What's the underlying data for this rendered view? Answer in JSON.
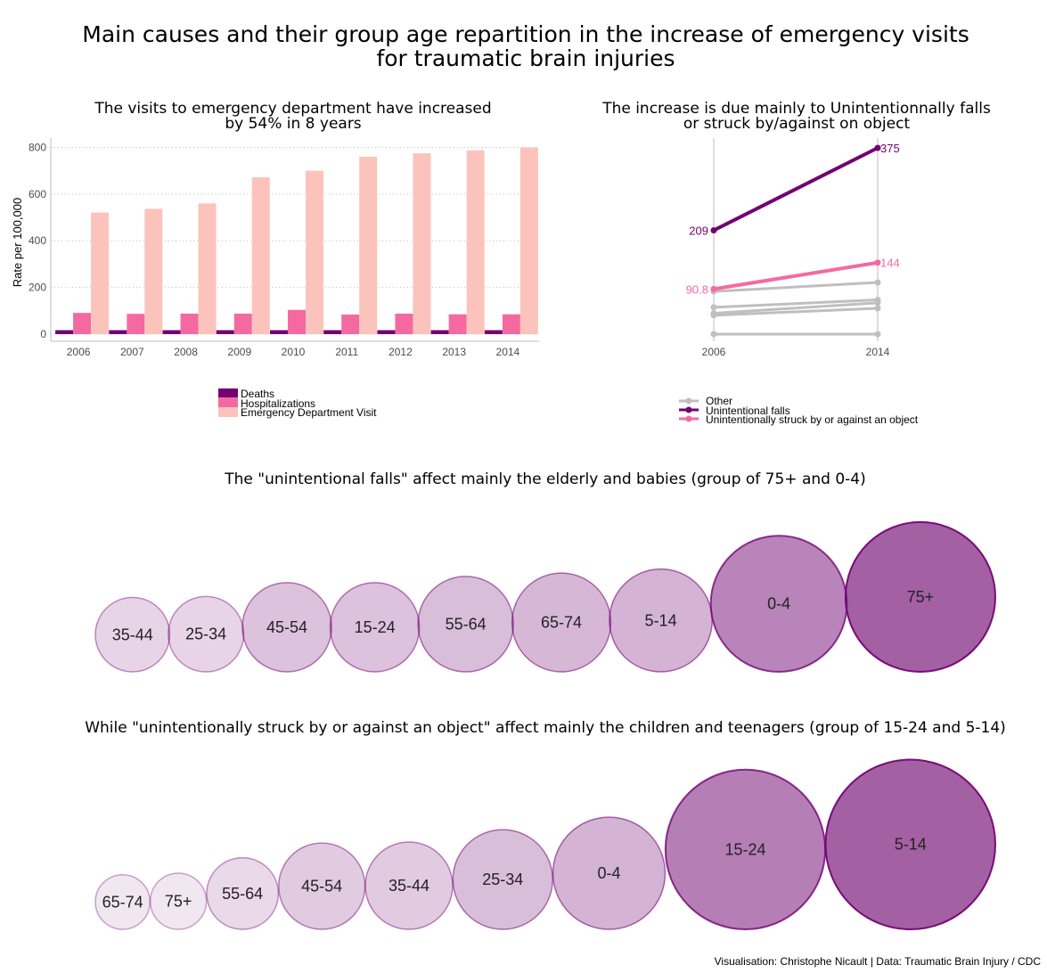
{
  "title": {
    "line1": "Main causes and their group age repartition in the increase of emergency visits",
    "line2": "for traumatic brain injuries"
  },
  "caption": "Visualisation: Christophe Nicault | Data: Traumatic Brain Injury / CDC",
  "colors": {
    "deaths": "#730073",
    "hospitalizations": "#f46aa0",
    "ed": "#fcc3bd",
    "other": "#bfbfbf",
    "falls": "#730073",
    "struck": "#f46aa0"
  },
  "chart_data": [
    {
      "type": "bar",
      "title": "The visits to emergency department have increased by 54% in 8 years",
      "title_lines": [
        "The visits to emergency department have increased",
        "by 54% in 8 years"
      ],
      "ylabel": "Rate per 100,000",
      "ylim": [
        0,
        840
      ],
      "yticks": [
        "0",
        "200",
        "400",
        "600",
        "800"
      ],
      "grid": true,
      "legend_position": "bottom",
      "categories": [
        "2006",
        "2007",
        "2008",
        "2009",
        "2010",
        "2011",
        "2012",
        "2013",
        "2014"
      ],
      "series": [
        {
          "name": "Deaths",
          "values": [
            17,
            17,
            17,
            17,
            17,
            17,
            17,
            17,
            17
          ]
        },
        {
          "name": "Hospitalizations",
          "values": [
            91,
            87,
            88,
            88,
            104,
            84,
            88,
            85,
            85
          ]
        },
        {
          "name": "Emergency Department Visit",
          "values": [
            521,
            537,
            560,
            672,
            700,
            760,
            775,
            788,
            800
          ]
        }
      ]
    },
    {
      "type": "line",
      "title": "The increase is due mainly to Unintentionnally falls or struck by/against on object",
      "title_lines": [
        "The increase is due mainly to Unintentionnally falls",
        "or struck by/against on object"
      ],
      "x": [
        "2006",
        "2014"
      ],
      "ylim": [
        0,
        375
      ],
      "legend_position": "bottom",
      "legend": [
        "Other",
        "Unintentional falls",
        "Unintentionally struck by or against an object"
      ],
      "series": [
        {
          "name": "Other",
          "values": [
            0,
            0
          ]
        },
        {
          "name": "Other",
          "values": [
            38,
            52
          ]
        },
        {
          "name": "Other",
          "values": [
            42,
            63
          ]
        },
        {
          "name": "Other",
          "values": [
            54,
            69
          ]
        },
        {
          "name": "Other",
          "values": [
            86,
            104
          ]
        },
        {
          "name": "Unintentional falls",
          "values": [
            209,
            375
          ],
          "labels": [
            "209",
            "375"
          ]
        },
        {
          "name": "Unintentionally struck by or against an object",
          "values": [
            90.8,
            144
          ],
          "labels": [
            "90.8",
            "144"
          ]
        }
      ]
    },
    {
      "type": "scatter",
      "title": "The \"unintentional falls\" affect mainly the elderly and babies (group of 75+ and 0-4)",
      "categories": [
        "35-44",
        "25-34",
        "45-54",
        "15-24",
        "55-64",
        "65-74",
        "5-14",
        "0-4",
        "75+"
      ],
      "values": [
        1.7,
        1.75,
        2.45,
        2.45,
        2.8,
        3.0,
        3.25,
        5.7,
        6.9
      ],
      "intensity": [
        0.18,
        0.18,
        0.26,
        0.26,
        0.28,
        0.3,
        0.32,
        0.52,
        0.68
      ]
    },
    {
      "type": "scatter",
      "title": "While \"unintentionally struck by or against an object\" affect mainly the children and teenagers (group of 15-24 and 5-14)",
      "categories": [
        "65-74",
        "75+",
        "55-64",
        "45-54",
        "35-44",
        "25-34",
        "0-4",
        "15-24",
        "5-14"
      ],
      "values": [
        0.9,
        0.95,
        1.55,
        2.25,
        2.3,
        3.0,
        3.8,
        7.7,
        8.7
      ],
      "intensity": [
        0.1,
        0.1,
        0.16,
        0.22,
        0.22,
        0.28,
        0.32,
        0.55,
        0.68
      ]
    }
  ]
}
